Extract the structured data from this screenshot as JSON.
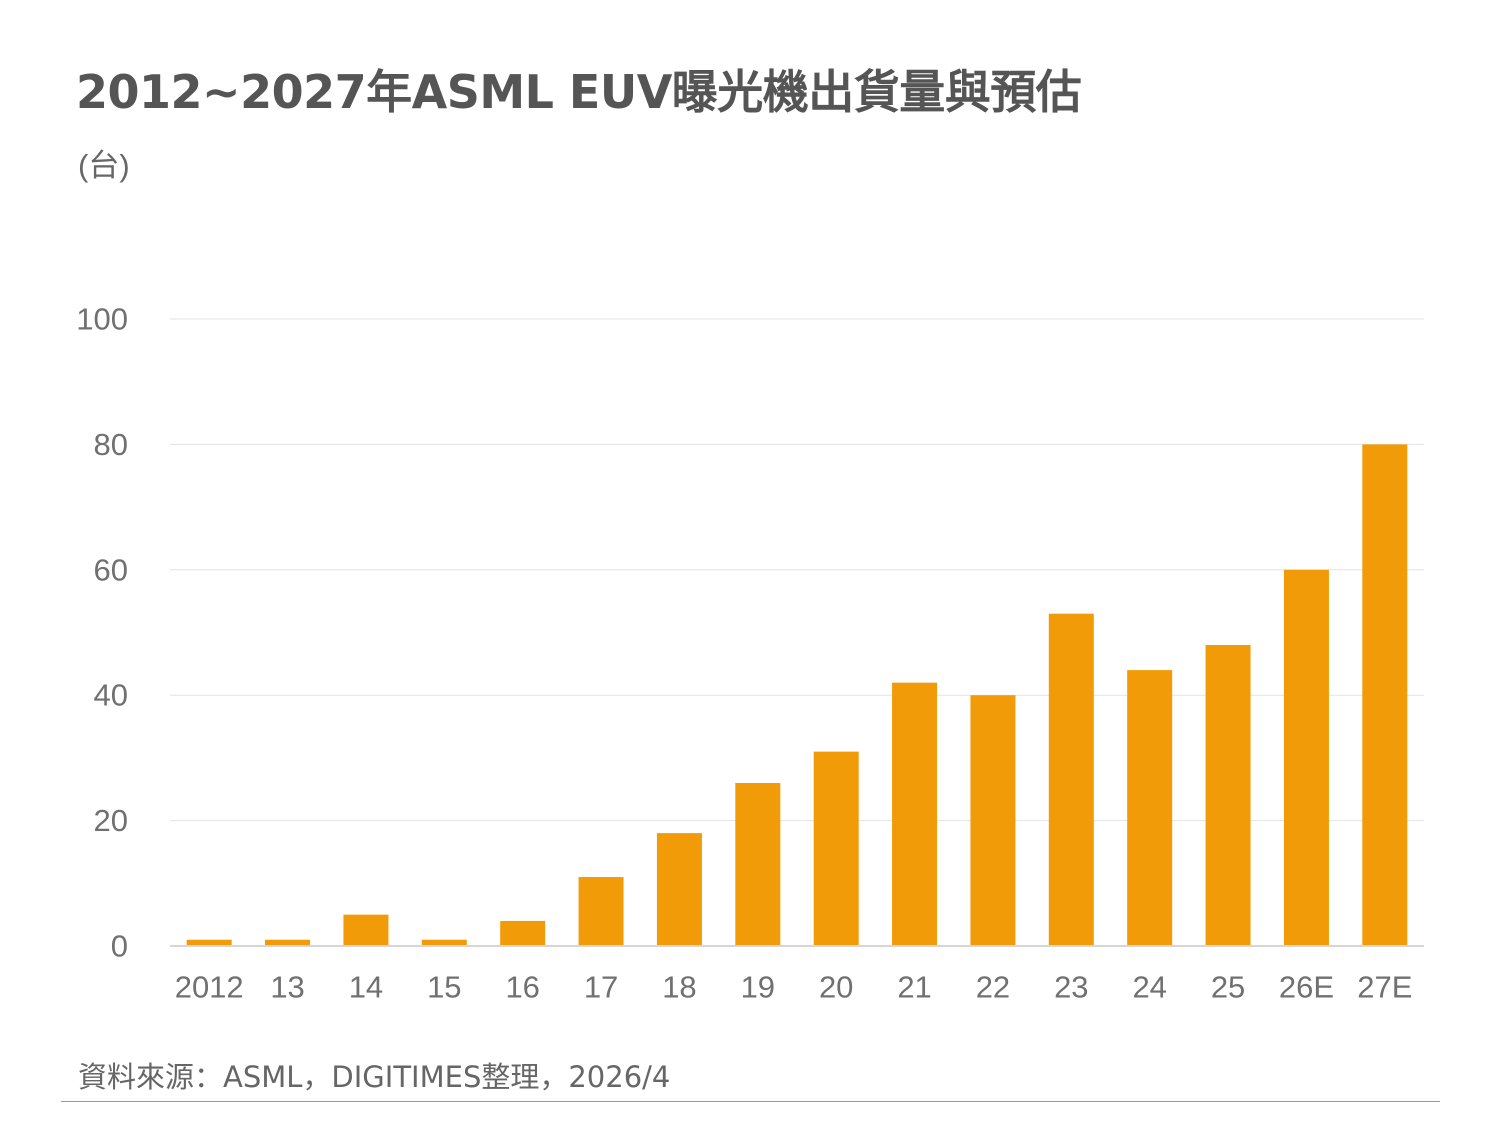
{
  "title": "2012~2027年ASML EUV曝光機出貨量與預估",
  "unit": "(台)",
  "source": "資料來源：ASML，DIGITIMES整理，2026/4",
  "colors": {
    "bar": "#F29B08",
    "grid": "#E3E3E3",
    "axis": "#D6D6D6",
    "tick_text": "#707070"
  },
  "chart_data": {
    "type": "bar",
    "categories": [
      "2012",
      "13",
      "14",
      "15",
      "16",
      "17",
      "18",
      "19",
      "20",
      "21",
      "22",
      "23",
      "24",
      "25",
      "26E",
      "27E"
    ],
    "values": [
      1,
      1,
      5,
      1,
      4,
      11,
      18,
      26,
      31,
      42,
      40,
      53,
      44,
      48,
      60,
      80
    ],
    "ylim": [
      0,
      100
    ],
    "yticks": [
      0,
      20,
      40,
      60,
      80,
      100
    ],
    "title": "2012~2027年ASML EUV曝光機出貨量與預估",
    "ylabel": "(台)",
    "xlabel": "",
    "grid": true,
    "legend": "none"
  }
}
